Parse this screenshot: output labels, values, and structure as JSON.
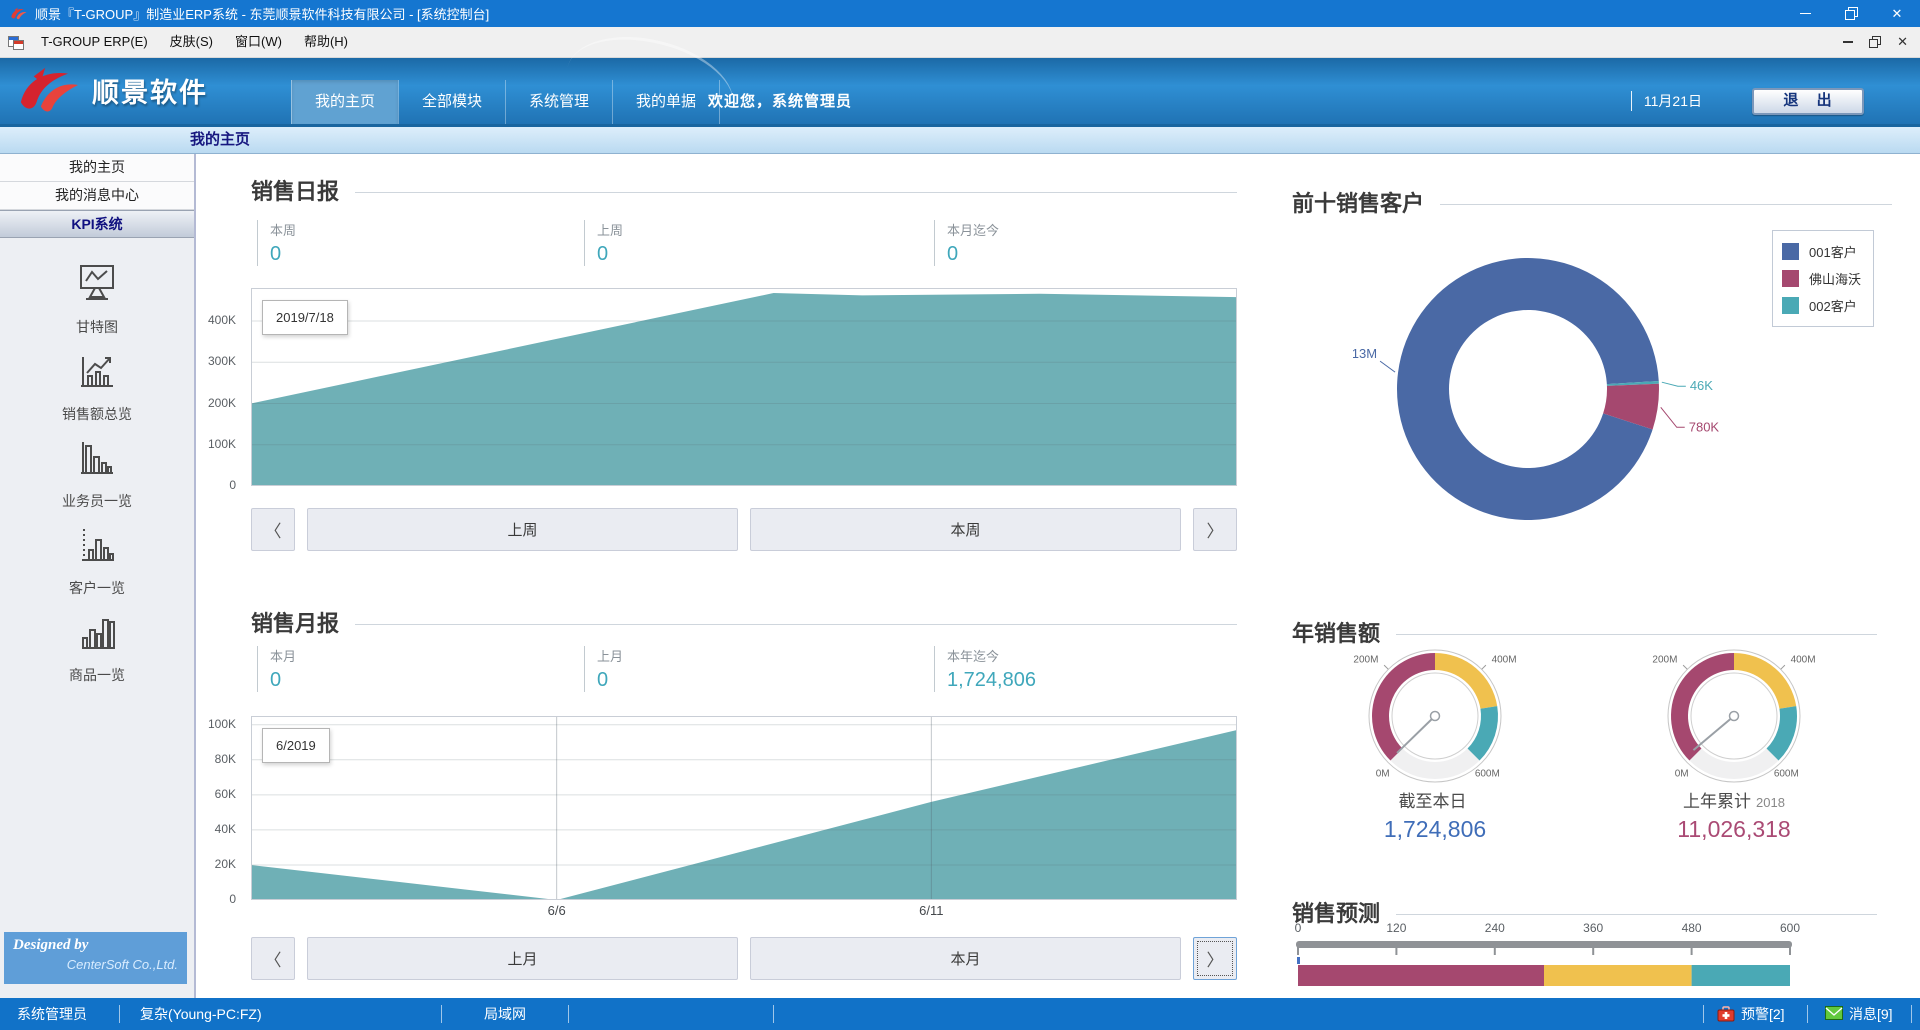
{
  "window": {
    "title": "顺景『T-GROUP』制造业ERP系统 - 东莞顺景软件科技有限公司 - [系统控制台]",
    "menu": [
      "T-GROUP ERP(E)",
      "皮肤(S)",
      "窗口(W)",
      "帮助(H)"
    ]
  },
  "header": {
    "logo_text": "顺景软件",
    "tabs": [
      {
        "label": "我的主页",
        "active": true
      },
      {
        "label": "全部模块",
        "active": false
      },
      {
        "label": "系统管理",
        "active": false
      },
      {
        "label": "我的单据",
        "active": false
      }
    ],
    "welcome": "欢迎您，系统管理员",
    "date": "11月21日",
    "exit_label": "退 出"
  },
  "breadcrumb": {
    "title": "我的主页"
  },
  "sidebar": {
    "nav": [
      "我的主页",
      "我的消息中心",
      "KPI系统"
    ],
    "shortcuts": [
      {
        "label": "甘特图",
        "icon": "gantt-chart-icon"
      },
      {
        "label": "销售额总览",
        "icon": "sales-overview-chart-icon"
      },
      {
        "label": "业务员一览",
        "icon": "salesman-chart-icon"
      },
      {
        "label": "客户一览",
        "icon": "customer-chart-icon"
      },
      {
        "label": "商品一览",
        "icon": "product-chart-icon"
      }
    ],
    "designed_by": "Designed by",
    "company": "CenterSoft Co.,Ltd."
  },
  "daily": {
    "title": "销售日报",
    "stats": [
      {
        "label": "本周",
        "value": "0"
      },
      {
        "label": "上周",
        "value": "0"
      },
      {
        "label": "本月迄今",
        "value": "0"
      }
    ],
    "pager": {
      "prev": "〈",
      "last": "上周",
      "current": "本周",
      "next": "〉"
    }
  },
  "monthly": {
    "title": "销售月报",
    "stats": [
      {
        "label": "本月",
        "value": "0"
      },
      {
        "label": "上月",
        "value": "0"
      },
      {
        "label": "本年迄今",
        "value": "1,724,806"
      }
    ],
    "pager": {
      "prev": "〈",
      "last": "上月",
      "current": "本月",
      "next": "〉"
    }
  },
  "customers": {
    "title": "前十销售客户",
    "legend": [
      {
        "label": "001客户",
        "color": "#4a69a5"
      },
      {
        "label": "佛山海沃",
        "color": "#a5486f"
      },
      {
        "label": "002客户",
        "color": "#4aa9b5"
      }
    ]
  },
  "annual": {
    "title": "年销售额"
  },
  "forecast": {
    "title": "销售预测"
  },
  "statusbar": {
    "user": "系统管理员",
    "machine": "复杂(Young-PC:FZ)",
    "network": "局域网",
    "alerts": "预警[2]",
    "messages": "消息[9]"
  },
  "chart_data": [
    {
      "id": "daily_sales",
      "type": "area",
      "title": "销售日报",
      "tooltip": "2019/7/18",
      "color": "#6fb0b6",
      "x": [
        0,
        0.53,
        0.62,
        0.8,
        1
      ],
      "values": [
        200000,
        468000,
        462000,
        466000,
        458000
      ],
      "ymax": 480000,
      "yticks": [
        {
          "v": 0,
          "label": "0"
        },
        {
          "v": 100000,
          "label": "100K"
        },
        {
          "v": 200000,
          "label": "200K"
        },
        {
          "v": 300000,
          "label": "300K"
        },
        {
          "v": 400000,
          "label": "400K"
        }
      ]
    },
    {
      "id": "monthly_sales",
      "type": "area",
      "title": "销售月报",
      "tooltip": "6/2019",
      "color": "#6fb0b6",
      "x": [
        0,
        0.31,
        0.69,
        1
      ],
      "values": [
        20000,
        0,
        56000,
        97000
      ],
      "ymax": 105000,
      "vgrid": [
        0.31,
        0.69
      ],
      "xticks": [
        {
          "x": 0.31,
          "label": "6/6"
        },
        {
          "x": 0.69,
          "label": "6/11"
        }
      ],
      "yticks": [
        {
          "v": 0,
          "label": "0"
        },
        {
          "v": 20000,
          "label": "20K"
        },
        {
          "v": 40000,
          "label": "40K"
        },
        {
          "v": 60000,
          "label": "60K"
        },
        {
          "v": 80000,
          "label": "80K"
        },
        {
          "v": 100000,
          "label": "100K"
        }
      ]
    },
    {
      "id": "top_customers",
      "type": "donut",
      "title": "前十销售客户",
      "start_angle": 108,
      "slices": [
        {
          "name": "001客户",
          "value": 13000000,
          "label": "13M",
          "color": "#4a69a5"
        },
        {
          "name": "002客户",
          "value": 46000,
          "label": "46K",
          "color": "#4aa9b5"
        },
        {
          "name": "佛山海沃",
          "value": 780000,
          "label": "780K",
          "color": "#a5486f"
        }
      ]
    },
    {
      "id": "annual_gauges",
      "type": "gauge",
      "title": "年销售额",
      "min": 0,
      "max": 600000000,
      "segments": [
        {
          "to": 300000000,
          "color": "#a5486f"
        },
        {
          "to": 480000000,
          "color": "#f0c14e"
        },
        {
          "to": 600000000,
          "color": "#4aa9b5"
        }
      ],
      "ticks": [
        {
          "v": 0,
          "label": "0M"
        },
        {
          "v": 200000000,
          "label": "200M"
        },
        {
          "v": 400000000,
          "label": "400M"
        },
        {
          "v": 600000000,
          "label": "600M"
        }
      ],
      "gauges": [
        {
          "caption": "截至本日",
          "year": "",
          "value": 1724806,
          "value_label": "1,724,806",
          "value_color": "#3f6db8"
        },
        {
          "caption": "上年累计",
          "year": "2018",
          "value": 11026318,
          "value_label": "11,026,318",
          "value_color": "#aa4a74"
        }
      ]
    },
    {
      "id": "sales_forecast",
      "type": "stacked_bar",
      "title": "销售预测",
      "min": 0,
      "max": 600,
      "ticks": [
        {
          "v": 0,
          "label": "0"
        },
        {
          "v": 120,
          "label": "120"
        },
        {
          "v": 240,
          "label": "240"
        },
        {
          "v": 360,
          "label": "360"
        },
        {
          "v": 480,
          "label": "480"
        },
        {
          "v": 600,
          "label": "600"
        }
      ],
      "segments": [
        {
          "from": 0,
          "to": 300,
          "color": "#a5486f"
        },
        {
          "from": 300,
          "to": 480,
          "color": "#f0c14e"
        },
        {
          "from": 480,
          "to": 600,
          "color": "#4aa9b5"
        }
      ],
      "marker": {
        "v": 0,
        "color": "#4472c4"
      }
    }
  ]
}
